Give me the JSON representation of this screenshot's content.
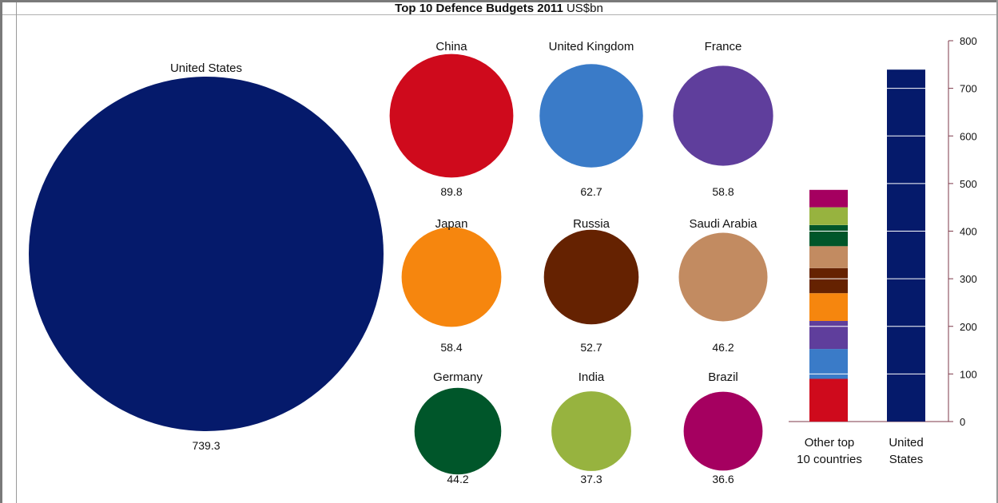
{
  "chart_data": {
    "title": "Top 10 Defence Budgets 2011",
    "unit": "US$bn",
    "bubbles": {
      "type": "bubble",
      "items": [
        {
          "name": "United States",
          "value": 739.3,
          "color": "#051a6b"
        },
        {
          "name": "China",
          "value": 89.8,
          "color": "#cf0a1c"
        },
        {
          "name": "United Kingdom",
          "value": 62.7,
          "color": "#3a7bc8"
        },
        {
          "name": "France",
          "value": 58.8,
          "color": "#5f3e9c"
        },
        {
          "name": "Japan",
          "value": 58.4,
          "color": "#f6860e"
        },
        {
          "name": "Russia",
          "value": 52.7,
          "color": "#652201"
        },
        {
          "name": "Saudi Arabia",
          "value": 46.2,
          "color": "#c28b61"
        },
        {
          "name": "Germany",
          "value": 44.2,
          "color": "#00562a"
        },
        {
          "name": "India",
          "value": 37.3,
          "color": "#97b33f"
        },
        {
          "name": "Brazil",
          "value": 36.6,
          "color": "#a50060"
        }
      ]
    },
    "bars": {
      "type": "bar",
      "stacked": true,
      "categories": [
        "Other top 10 countries",
        "United States"
      ],
      "ylim": [
        0,
        800
      ],
      "yticks": [
        0,
        100,
        200,
        300,
        400,
        500,
        600,
        700,
        800
      ],
      "gridlines_inside_bars": true,
      "axis_position": "right"
    }
  }
}
